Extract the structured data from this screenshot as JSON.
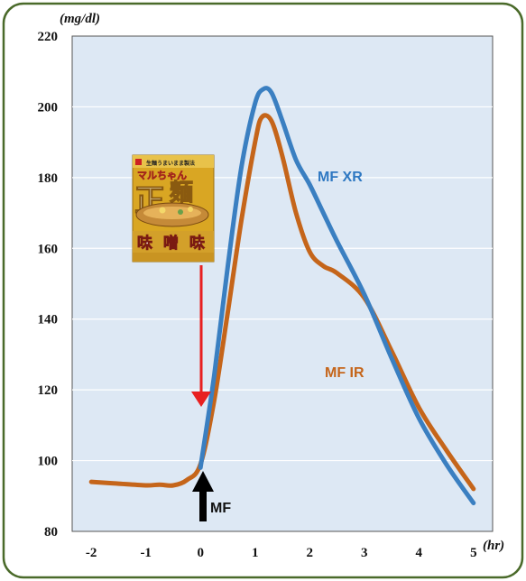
{
  "chart_data": {
    "type": "line",
    "title": "",
    "xlabel": "",
    "ylabel": "",
    "y_unit": "(mg/dl)",
    "x_unit": "(hr)",
    "xlim": [
      -2.35,
      5.35
    ],
    "ylim": [
      80,
      220
    ],
    "x_ticks": [
      "-2",
      "-1",
      "0",
      "1",
      "2",
      "3",
      "4",
      "5"
    ],
    "y_ticks": [
      "80",
      "100",
      "120",
      "140",
      "160",
      "180",
      "200",
      "220"
    ],
    "grid": true,
    "legend": "none",
    "series": [
      {
        "name": "MF XR",
        "color": "#3a7fc1",
        "x": [
          0,
          0.25,
          0.5,
          0.75,
          1.0,
          1.15,
          1.3,
          1.5,
          1.75,
          2.0,
          2.25,
          2.5,
          3.0,
          3.5,
          4.0,
          4.5,
          5.0
        ],
        "y": [
          98,
          124,
          155,
          183,
          201,
          205,
          204,
          196,
          185,
          178,
          170,
          162,
          147,
          129,
          112,
          99,
          88
        ]
      },
      {
        "name": "MF IR",
        "color": "#c5651a",
        "x": [
          -2,
          -1.5,
          -1,
          -0.75,
          -0.5,
          -0.25,
          0,
          0.25,
          0.5,
          0.75,
          1.0,
          1.12,
          1.3,
          1.5,
          1.75,
          2.0,
          2.25,
          2.5,
          3.0,
          3.5,
          4.0,
          4.5,
          5.0
        ],
        "y": [
          94,
          93.5,
          93,
          93.2,
          93,
          94.5,
          99,
          117,
          142,
          168,
          190,
          197,
          196,
          186,
          170,
          159,
          155,
          153,
          146,
          131,
          115,
          103,
          92
        ]
      }
    ],
    "annotations": [
      {
        "text": "MF XR",
        "series": 0
      },
      {
        "text": "MF IR",
        "series": 1
      },
      {
        "text": "MF",
        "x": 0
      }
    ]
  },
  "colors": {
    "plot_background": "#dde8f4",
    "frame_border": "#4a6a2a",
    "red_arrow": "#e82020",
    "black_arrow": "#000000"
  },
  "package": {
    "brand": "マルちゃん",
    "top_text": "生麺うまいまま製法",
    "big_char_1": "正",
    "big_char_2": "麺",
    "flavor_chars": [
      "味",
      "噌",
      "味"
    ]
  }
}
